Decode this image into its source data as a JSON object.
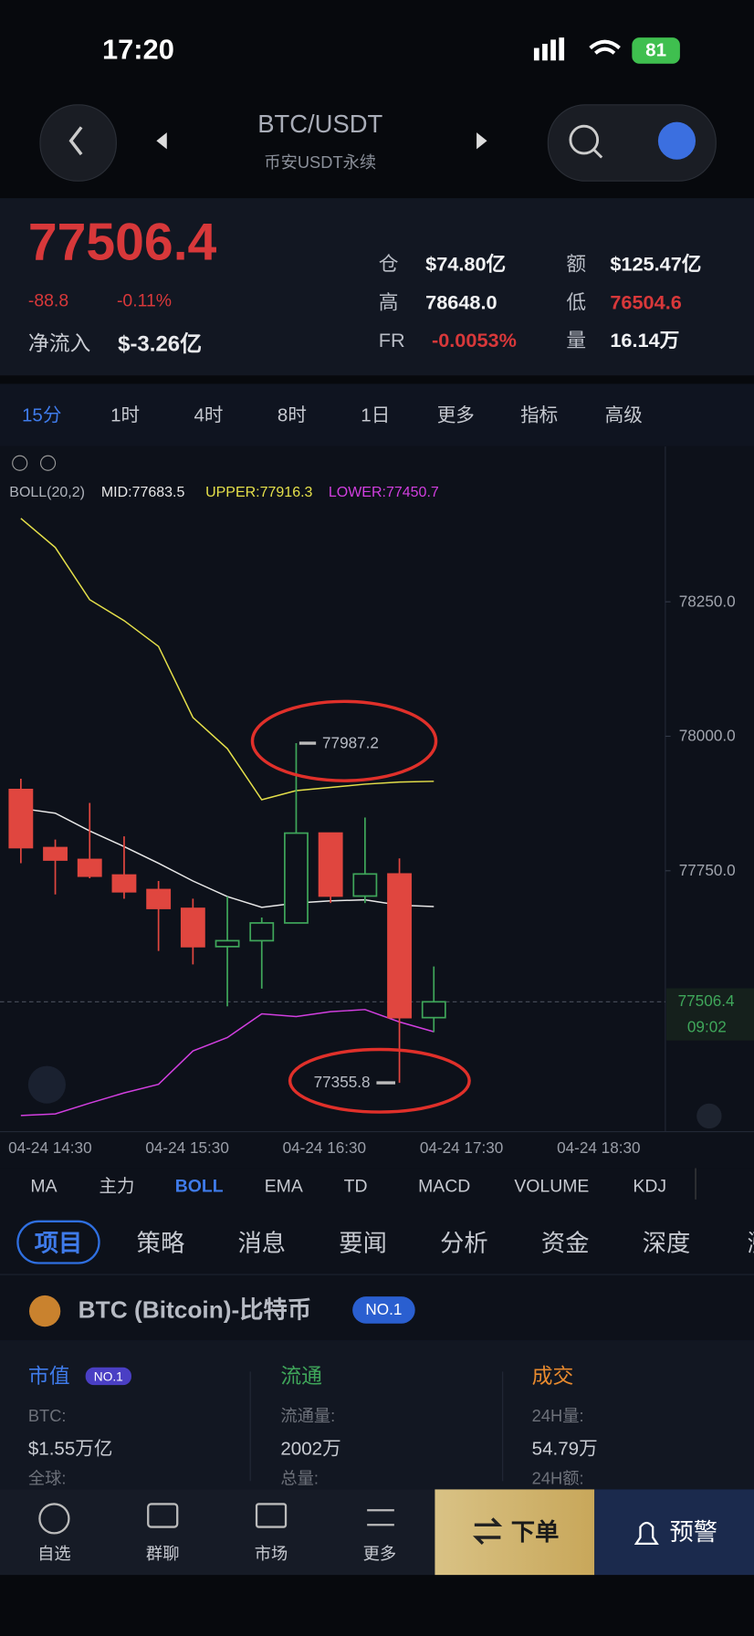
{
  "status_bar": {
    "time": "17:20",
    "battery": "81"
  },
  "header": {
    "title": "BTC/USDT",
    "subtitle": "币安USDT永续"
  },
  "ticker": {
    "price": "77506.4",
    "change": "-88.8",
    "change_pct": "-0.11%",
    "net_inflow_label": "净流入",
    "net_inflow": "$-3.26亿",
    "stats": [
      [
        "仓",
        "$74.80亿"
      ],
      [
        "额",
        "$125.47亿"
      ],
      [
        "高",
        "78648.0"
      ],
      [
        "低",
        "76504.6"
      ],
      [
        "FR",
        "-0.0053%"
      ],
      [
        "量",
        "16.14万"
      ]
    ]
  },
  "timeframes": [
    "15分",
    "1时",
    "4时",
    "8时",
    "1日",
    "更多",
    "指标",
    "高级"
  ],
  "chart_data": {
    "type": "candlestick",
    "legend": [
      "BOLL(20,2)",
      "MID:77683.5",
      "UPPER:77916.3",
      "LOWER:77450.7"
    ],
    "open": [
      77901,
      77793,
      77771,
      77742,
      77715,
      77680,
      77609,
      77620,
      77653,
      77820,
      77703,
      77744,
      77477
    ],
    "high": [
      77921,
      77808,
      77876,
      77814,
      77731,
      77698,
      77702,
      77663,
      77987.2,
      77820,
      77849,
      77773,
      77572
    ],
    "low": [
      77764,
      77706,
      77736,
      77698,
      77601,
      77576,
      77498,
      77531,
      77653,
      77690,
      77690,
      77355.8,
      77450
    ],
    "close": [
      77793,
      77770,
      77740,
      77711,
      77680,
      77609,
      77620,
      77653,
      77820,
      77703,
      77744,
      77477,
      77506.4
    ],
    "up_color": "#3fa65a",
    "down_color": "#e0463f",
    "boll": {
      "upper": [
        78405,
        78351,
        78254,
        78215,
        78167,
        78035,
        77977,
        77882,
        77899,
        77905,
        77911,
        77915,
        77916.3
      ],
      "mid": [
        77866,
        77857,
        77824,
        77795,
        77764,
        77731,
        77702,
        77682,
        77690,
        77694,
        77696,
        77686,
        77683.5
      ],
      "lower": [
        77295,
        77298,
        77318,
        77337,
        77353,
        77415,
        77440,
        77484,
        77479,
        77488,
        77492,
        77469,
        77450.7
      ],
      "upper_color": "#e5e04a",
      "mid_color": "#e8e8e8",
      "lower_color": "#d23fe0"
    },
    "ylim": [
      77265,
      78535
    ],
    "yticks": [
      {
        "value": 77750,
        "label": "77750.0"
      },
      {
        "value": 78000,
        "label": "78000.0"
      },
      {
        "value": 78250,
        "label": "78250.0"
      }
    ],
    "x_labels": [
      "04-24 14:30",
      "04-24 15:30",
      "04-24 16:30",
      "04-24 17:30",
      "04-24 18:30"
    ],
    "high_label": "77987.2",
    "low_label": "77355.8",
    "last_price": {
      "value": 77506.4,
      "label": "77506.4"
    },
    "countdown": "09:02"
  },
  "indicators": [
    "MA",
    "主力",
    "BOLL",
    "EMA",
    "TD",
    "MACD",
    "VOLUME",
    "KDJ"
  ],
  "news_tabs": [
    "项目",
    "策略",
    "消息",
    "要闻",
    "分析",
    "资金",
    "深度",
    "涨"
  ],
  "coin": {
    "name": "BTC (Bitcoin)-比特币",
    "rank": "NO.1"
  },
  "info": [
    {
      "title": "市值",
      "badge": "NO.1",
      "rows": [
        "BTC:",
        "$1.55万亿",
        "全球:"
      ]
    },
    {
      "title": "流通",
      "rows": [
        "流通量:",
        "2002万",
        "总量:"
      ]
    },
    {
      "title": "成交",
      "rows": [
        "24H量:",
        "54.79万",
        "24H额:"
      ]
    }
  ],
  "bottom_nav": {
    "items": [
      "自选",
      "群聊",
      "市场",
      "更多"
    ],
    "order": "下单",
    "alert": "预警"
  }
}
